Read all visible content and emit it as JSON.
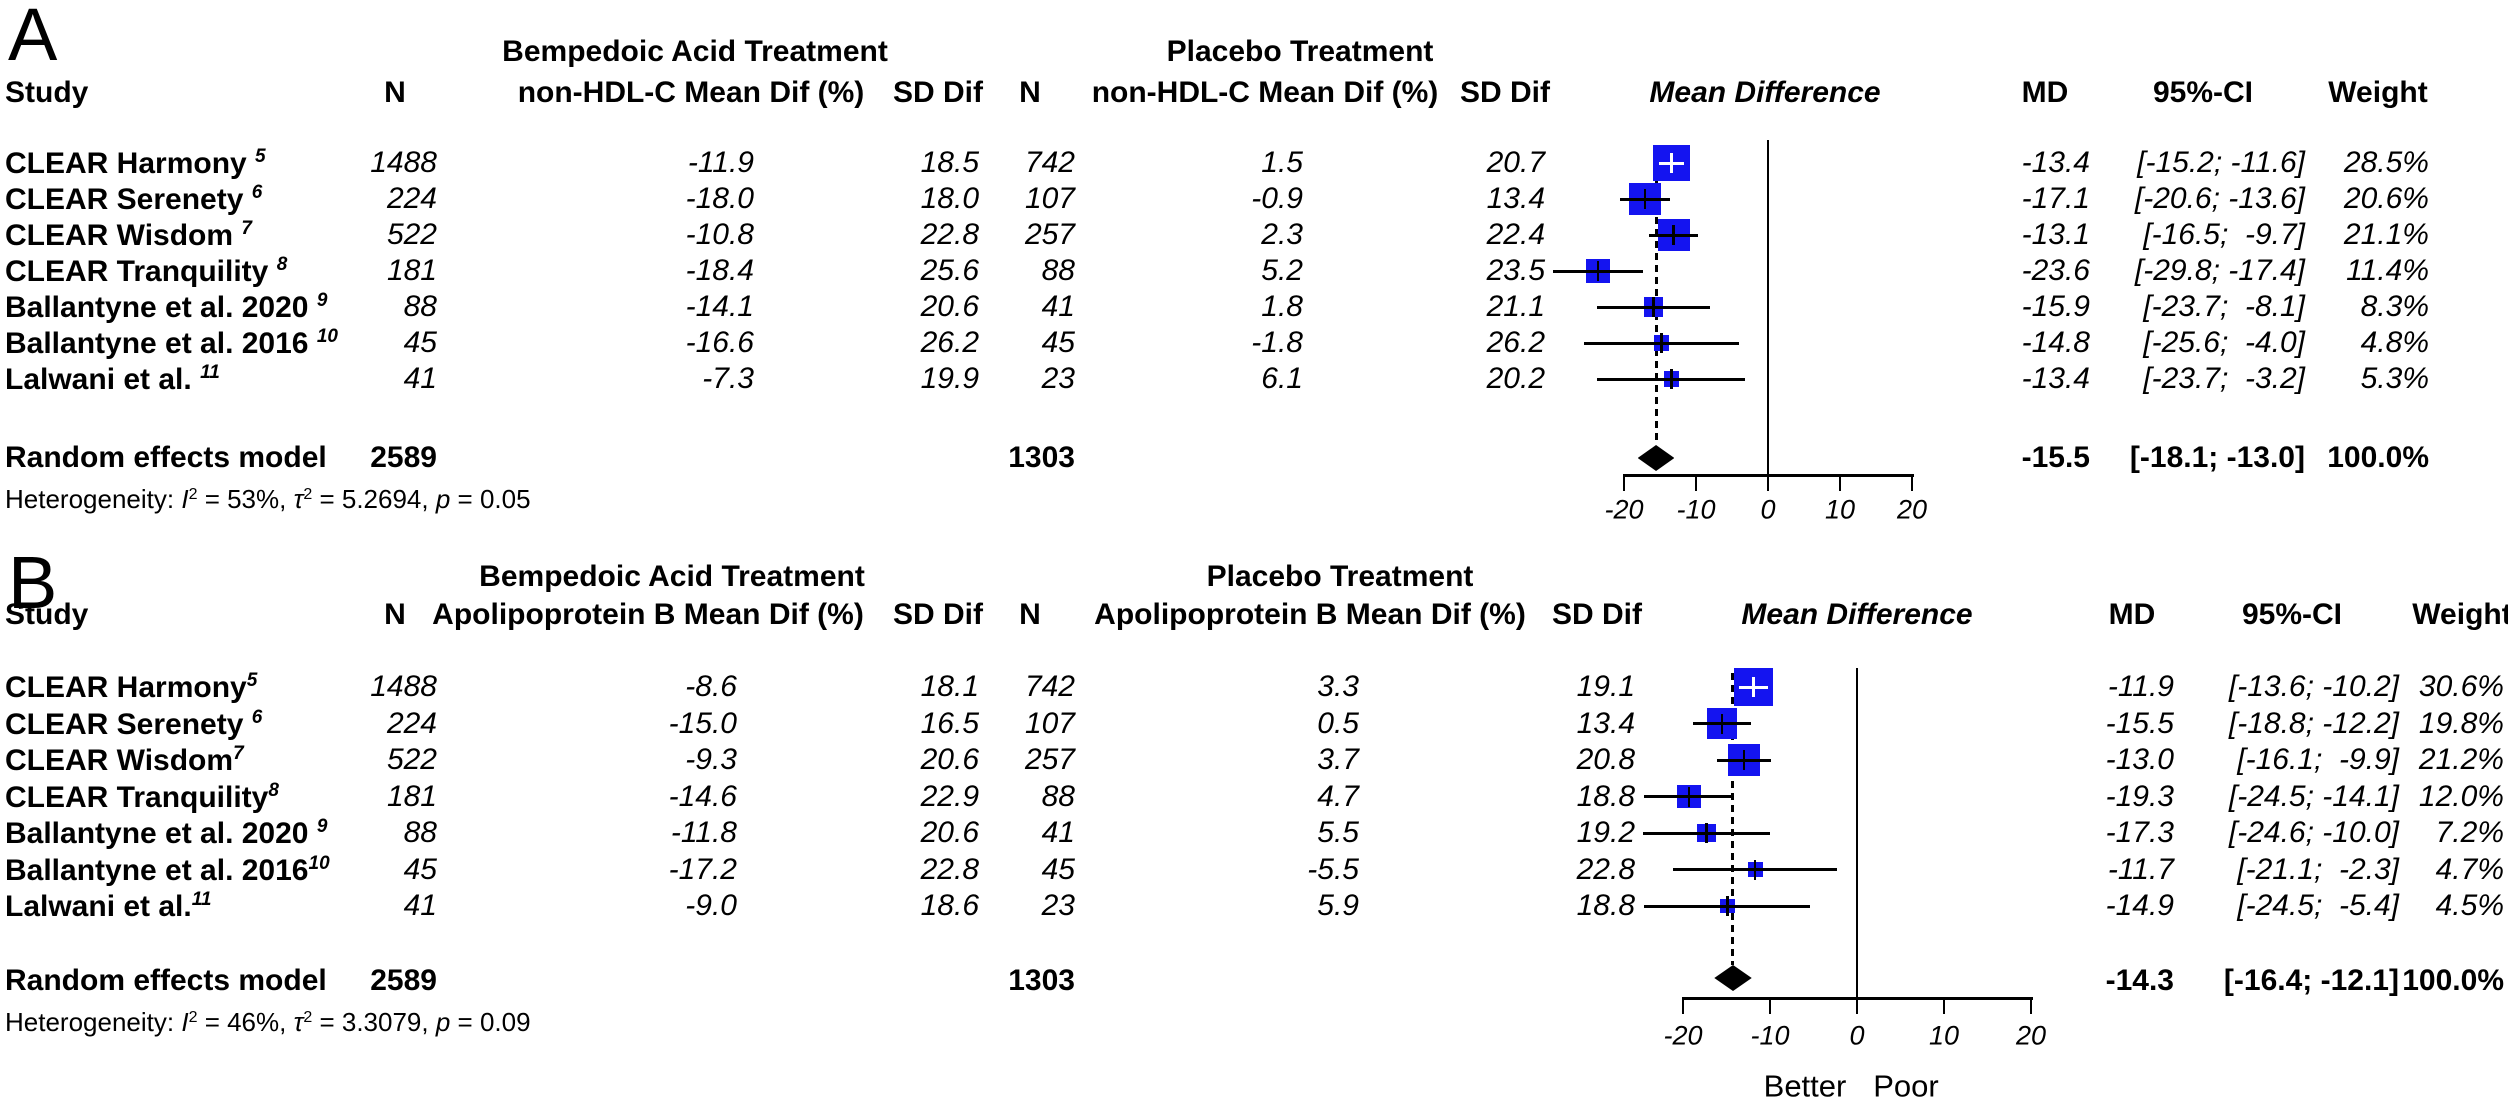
{
  "figure": {
    "background": "#ffffff"
  },
  "chart_data": [
    {
      "type": "forest",
      "panel_label": "A",
      "outcome": "non-HDL-C",
      "treatment_group_label": "Bempedoic Acid Treatment",
      "placebo_group_label": "Placebo Treatment",
      "columns": {
        "study": "Study",
        "n": "N",
        "mean_dif": "non-HDL-C Mean Dif (%)",
        "sd_dif": "SD Dif",
        "n_placebo": "N",
        "mean_dif_placebo": "non-HDL-C Mean Dif (%)",
        "sd_dif_placebo": "SD Dif",
        "plot": "Mean Difference",
        "md": "MD",
        "ci": "95%-CI",
        "weight": "Weight"
      },
      "studies": [
        {
          "name": "CLEAR Harmony ",
          "sup": "5",
          "n": "1488",
          "mean_dif": "-11.9",
          "sd_dif": "18.5",
          "n_placebo": "742",
          "mean_dif_placebo": "1.5",
          "sd_dif_placebo": "20.7",
          "md": -13.4,
          "ci_lo": -15.2,
          "ci_hi": -11.6,
          "md_text": "-13.4",
          "ci_text": "[-15.2; -11.6]",
          "weight_pct": 28.5,
          "weight_text": "28.5%"
        },
        {
          "name": "CLEAR Serenety ",
          "sup": "6",
          "n": "224",
          "mean_dif": "-18.0",
          "sd_dif": "18.0",
          "n_placebo": "107",
          "mean_dif_placebo": "-0.9",
          "sd_dif_placebo": "13.4",
          "md": -17.1,
          "ci_lo": -20.6,
          "ci_hi": -13.6,
          "md_text": "-17.1",
          "ci_text": "[-20.6; -13.6]",
          "weight_pct": 20.6,
          "weight_text": "20.6%"
        },
        {
          "name": "CLEAR Wisdom ",
          "sup": "7",
          "n": "522",
          "mean_dif": "-10.8",
          "sd_dif": "22.8",
          "n_placebo": "257",
          "mean_dif_placebo": "2.3",
          "sd_dif_placebo": "22.4",
          "md": -13.1,
          "ci_lo": -16.5,
          "ci_hi": -9.7,
          "md_text": "-13.1",
          "ci_text": "[-16.5;  -9.7]",
          "weight_pct": 21.1,
          "weight_text": "21.1%"
        },
        {
          "name": "CLEAR Tranquility ",
          "sup": "8",
          "n": "181",
          "mean_dif": "-18.4",
          "sd_dif": "25.6",
          "n_placebo": "88",
          "mean_dif_placebo": "5.2",
          "sd_dif_placebo": "23.5",
          "md": -23.6,
          "ci_lo": -29.8,
          "ci_hi": -17.4,
          "md_text": "-23.6",
          "ci_text": "[-29.8; -17.4]",
          "weight_pct": 11.4,
          "weight_text": "11.4%"
        },
        {
          "name": "Ballantyne et al. 2020 ",
          "sup": "9",
          "n": "88",
          "mean_dif": "-14.1",
          "sd_dif": "20.6",
          "n_placebo": "41",
          "mean_dif_placebo": "1.8",
          "sd_dif_placebo": "21.1",
          "md": -15.9,
          "ci_lo": -23.7,
          "ci_hi": -8.1,
          "md_text": "-15.9",
          "ci_text": "[-23.7;  -8.1]",
          "weight_pct": 8.3,
          "weight_text": "8.3%"
        },
        {
          "name": "Ballantyne et al. 2016 ",
          "sup": "10",
          "n": "45",
          "mean_dif": "-16.6",
          "sd_dif": "26.2",
          "n_placebo": "45",
          "mean_dif_placebo": "-1.8",
          "sd_dif_placebo": "26.2",
          "md": -14.8,
          "ci_lo": -25.6,
          "ci_hi": -4.0,
          "md_text": "-14.8",
          "ci_text": "[-25.6;  -4.0]",
          "weight_pct": 4.8,
          "weight_text": "4.8%"
        },
        {
          "name": "Lalwani et al. ",
          "sup": "11",
          "n": "41",
          "mean_dif": "-7.3",
          "sd_dif": "19.9",
          "n_placebo": "23",
          "mean_dif_placebo": "6.1",
          "sd_dif_placebo": "20.2",
          "md": -13.4,
          "ci_lo": -23.7,
          "ci_hi": -3.2,
          "md_text": "-13.4",
          "ci_text": "[-23.7;  -3.2]",
          "weight_pct": 5.3,
          "weight_text": "5.3%"
        }
      ],
      "summary": {
        "label": "Random effects model",
        "n": "2589",
        "n_placebo": "1303",
        "md": -15.5,
        "ci_lo": -18.1,
        "ci_hi": -13.0,
        "md_text": "-15.5",
        "ci_text": "[-18.1; -13.0]",
        "weight_text": "100.0%"
      },
      "heterogeneity": [
        {
          "t": "Heterogeneity: "
        },
        {
          "t": "I",
          "i": true
        },
        {
          "t": "2",
          "sup": true
        },
        {
          "t": " = 53%, "
        },
        {
          "t": "τ",
          "i": true
        },
        {
          "t": "2",
          "sup": true
        },
        {
          "t": " = 5.2694, "
        },
        {
          "t": "p",
          "i": true
        },
        {
          "t": " = 0.05"
        }
      ],
      "axis": {
        "ticks": [
          -20,
          -10,
          0,
          10,
          20
        ],
        "tick_labels": [
          "-20",
          "-10",
          "0",
          "10",
          "20"
        ],
        "xlim": [
          -20,
          20
        ]
      },
      "colors": {
        "box": "#1414f0",
        "diamond": "#000000",
        "line": "#000000",
        "white_marker": "#ffffff"
      }
    },
    {
      "type": "forest",
      "panel_label": "B",
      "outcome": "Apolipoprotein B",
      "treatment_group_label": "Bempedoic Acid Treatment",
      "placebo_group_label": "Placebo Treatment",
      "columns": {
        "study": "Study",
        "n": "N",
        "mean_dif": "Apolipoprotein B Mean Dif (%)",
        "sd_dif": "SD Dif",
        "n_placebo": "N",
        "mean_dif_placebo": "Apolipoprotein B Mean Dif (%)",
        "sd_dif_placebo": "SD Dif",
        "plot": "Mean Difference",
        "md": "MD",
        "ci": "95%-CI",
        "weight": "Weight"
      },
      "studies": [
        {
          "name": "CLEAR Harmony",
          "sup": "5",
          "n": "1488",
          "mean_dif": "-8.6",
          "sd_dif": "18.1",
          "n_placebo": "742",
          "mean_dif_placebo": "3.3",
          "sd_dif_placebo": "19.1",
          "md": -11.9,
          "ci_lo": -13.6,
          "ci_hi": -10.2,
          "md_text": "-11.9",
          "ci_text": "[-13.6; -10.2]",
          "weight_pct": 30.6,
          "weight_text": "30.6%"
        },
        {
          "name": "CLEAR Serenety ",
          "sup": "6",
          "n": "224",
          "mean_dif": "-15.0",
          "sd_dif": "16.5",
          "n_placebo": "107",
          "mean_dif_placebo": "0.5",
          "sd_dif_placebo": "13.4",
          "md": -15.5,
          "ci_lo": -18.8,
          "ci_hi": -12.2,
          "md_text": "-15.5",
          "ci_text": "[-18.8; -12.2]",
          "weight_pct": 19.8,
          "weight_text": "19.8%"
        },
        {
          "name": "CLEAR Wisdom",
          "sup": "7",
          "n": "522",
          "mean_dif": "-9.3",
          "sd_dif": "20.6",
          "n_placebo": "257",
          "mean_dif_placebo": "3.7",
          "sd_dif_placebo": "20.8",
          "md": -13.0,
          "ci_lo": -16.1,
          "ci_hi": -9.9,
          "md_text": "-13.0",
          "ci_text": "[-16.1;  -9.9]",
          "weight_pct": 21.2,
          "weight_text": "21.2%"
        },
        {
          "name": "CLEAR Tranquility",
          "sup": "8",
          "n": "181",
          "mean_dif": "-14.6",
          "sd_dif": "22.9",
          "n_placebo": "88",
          "mean_dif_placebo": "4.7",
          "sd_dif_placebo": "18.8",
          "md": -19.3,
          "ci_lo": -24.5,
          "ci_hi": -14.1,
          "md_text": "-19.3",
          "ci_text": "[-24.5; -14.1]",
          "weight_pct": 12.0,
          "weight_text": "12.0%"
        },
        {
          "name": "Ballantyne et al. 2020 ",
          "sup": "9",
          "n": "88",
          "mean_dif": "-11.8",
          "sd_dif": "20.6",
          "n_placebo": "41",
          "mean_dif_placebo": "5.5",
          "sd_dif_placebo": "19.2",
          "md": -17.3,
          "ci_lo": -24.6,
          "ci_hi": -10.0,
          "md_text": "-17.3",
          "ci_text": "[-24.6; -10.0]",
          "weight_pct": 7.2,
          "weight_text": "7.2%"
        },
        {
          "name": "Ballantyne et al. 2016",
          "sup": "10",
          "n": "45",
          "mean_dif": "-17.2",
          "sd_dif": "22.8",
          "n_placebo": "45",
          "mean_dif_placebo": "-5.5",
          "sd_dif_placebo": "22.8",
          "md": -11.7,
          "ci_lo": -21.1,
          "ci_hi": -2.3,
          "md_text": "-11.7",
          "ci_text": "[-21.1;  -2.3]",
          "weight_pct": 4.7,
          "weight_text": "4.7%"
        },
        {
          "name": "Lalwani et al.",
          "sup": "11",
          "n": "41",
          "mean_dif": "-9.0",
          "sd_dif": "18.6",
          "n_placebo": "23",
          "mean_dif_placebo": "5.9",
          "sd_dif_placebo": "18.8",
          "md": -14.9,
          "ci_lo": -24.5,
          "ci_hi": -5.4,
          "md_text": "-14.9",
          "ci_text": "[-24.5;  -5.4]",
          "weight_pct": 4.5,
          "weight_text": "4.5%"
        }
      ],
      "summary": {
        "label": "Random effects model",
        "n": "2589",
        "n_placebo": "1303",
        "md": -14.3,
        "ci_lo": -16.4,
        "ci_hi": -12.1,
        "md_text": "-14.3",
        "ci_text": "[-16.4; -12.1]",
        "weight_text": "100.0%"
      },
      "heterogeneity": [
        {
          "t": "Heterogeneity: "
        },
        {
          "t": "I",
          "i": true
        },
        {
          "t": "2",
          "sup": true
        },
        {
          "t": " = 46%, "
        },
        {
          "t": "τ",
          "i": true
        },
        {
          "t": "2",
          "sup": true
        },
        {
          "t": " = 3.3079, "
        },
        {
          "t": "p",
          "i": true
        },
        {
          "t": " = 0.09"
        }
      ],
      "axis": {
        "ticks": [
          -20,
          -10,
          0,
          10,
          20
        ],
        "tick_labels": [
          "-20",
          "-10",
          "0",
          "10",
          "20"
        ],
        "xlim": [
          -20,
          20
        ]
      },
      "axis_sublabels": {
        "left": "Better",
        "right": "Poor"
      },
      "colors": {
        "box": "#1414f0",
        "diamond": "#000000",
        "line": "#000000",
        "white_marker": "#ffffff"
      }
    }
  ]
}
